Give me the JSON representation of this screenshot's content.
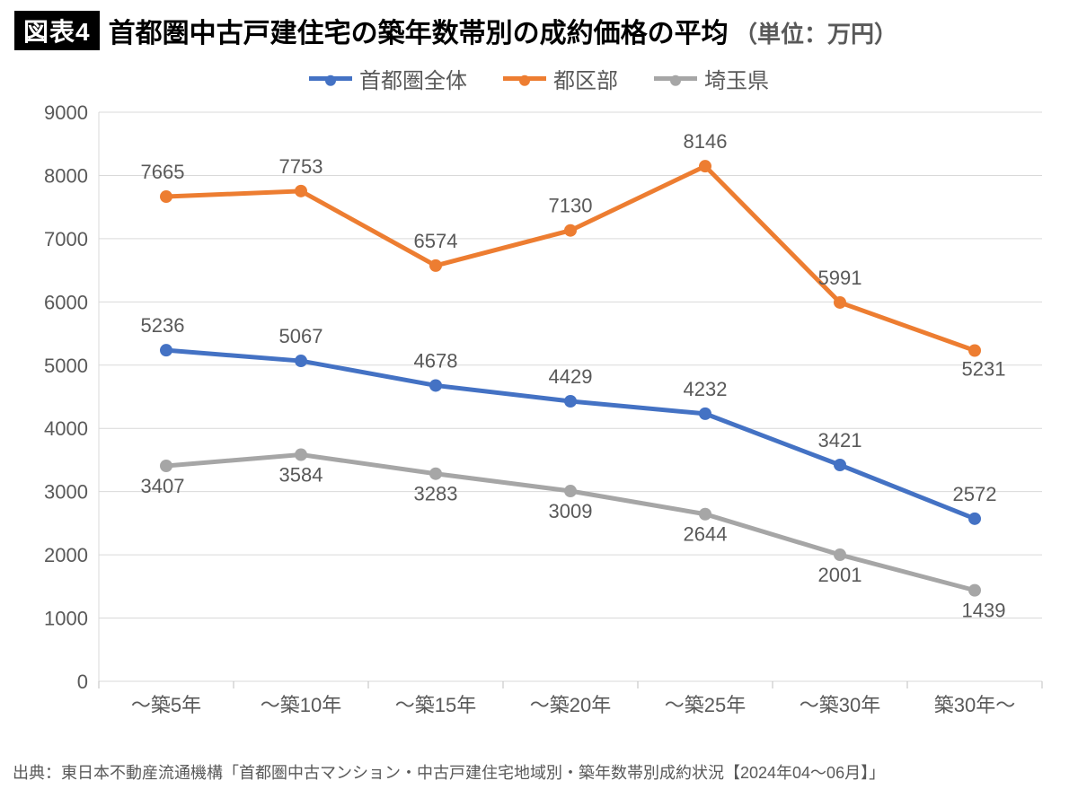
{
  "figure_badge": "図表4",
  "title_main": "首都圏中古戸建住宅の築年数帯別の成約価格の平均",
  "title_unit": "（単位：万円）",
  "source": "出典：東日本不動産流通機構「首都圏中古マンション・中古戸建住宅地域別・築年数帯別成約状況【2024年04～06月】」",
  "chart": {
    "type": "line",
    "categories": [
      "～築5年",
      "～築10年",
      "～築15年",
      "～築20年",
      "～築25年",
      "～築30年",
      "築30年～"
    ],
    "ylim": [
      0,
      9000
    ],
    "ytick_step": 1000,
    "background_color": "#ffffff",
    "grid_color": "#d9d9d9",
    "axis_text_color": "#595959",
    "axis_fontsize": 22,
    "label_fontsize": 22,
    "line_width": 5,
    "marker_radius": 7,
    "series": [
      {
        "name": "首都圏全体",
        "color": "#4472c4",
        "values": [
          5236,
          5067,
          4678,
          4429,
          4232,
          3421,
          2572
        ],
        "label_offset": [
          [
            -4,
            -20
          ],
          [
            0,
            -20
          ],
          [
            0,
            -20
          ],
          [
            0,
            -20
          ],
          [
            0,
            -20
          ],
          [
            0,
            -20
          ],
          [
            0,
            -20
          ]
        ]
      },
      {
        "name": "都区部",
        "color": "#ed7d31",
        "values": [
          7665,
          7753,
          6574,
          7130,
          8146,
          5991,
          5231
        ],
        "label_offset": [
          [
            -4,
            -20
          ],
          [
            0,
            -20
          ],
          [
            0,
            -20
          ],
          [
            0,
            -20
          ],
          [
            0,
            -20
          ],
          [
            0,
            -20
          ],
          [
            10,
            28
          ]
        ]
      },
      {
        "name": "埼玉県",
        "color": "#a6a6a6",
        "values": [
          3407,
          3584,
          3283,
          3009,
          2644,
          2001,
          1439
        ],
        "label_offset": [
          [
            -4,
            30
          ],
          [
            0,
            30
          ],
          [
            0,
            30
          ],
          [
            0,
            30
          ],
          [
            0,
            30
          ],
          [
            0,
            30
          ],
          [
            10,
            30
          ]
        ]
      }
    ]
  }
}
